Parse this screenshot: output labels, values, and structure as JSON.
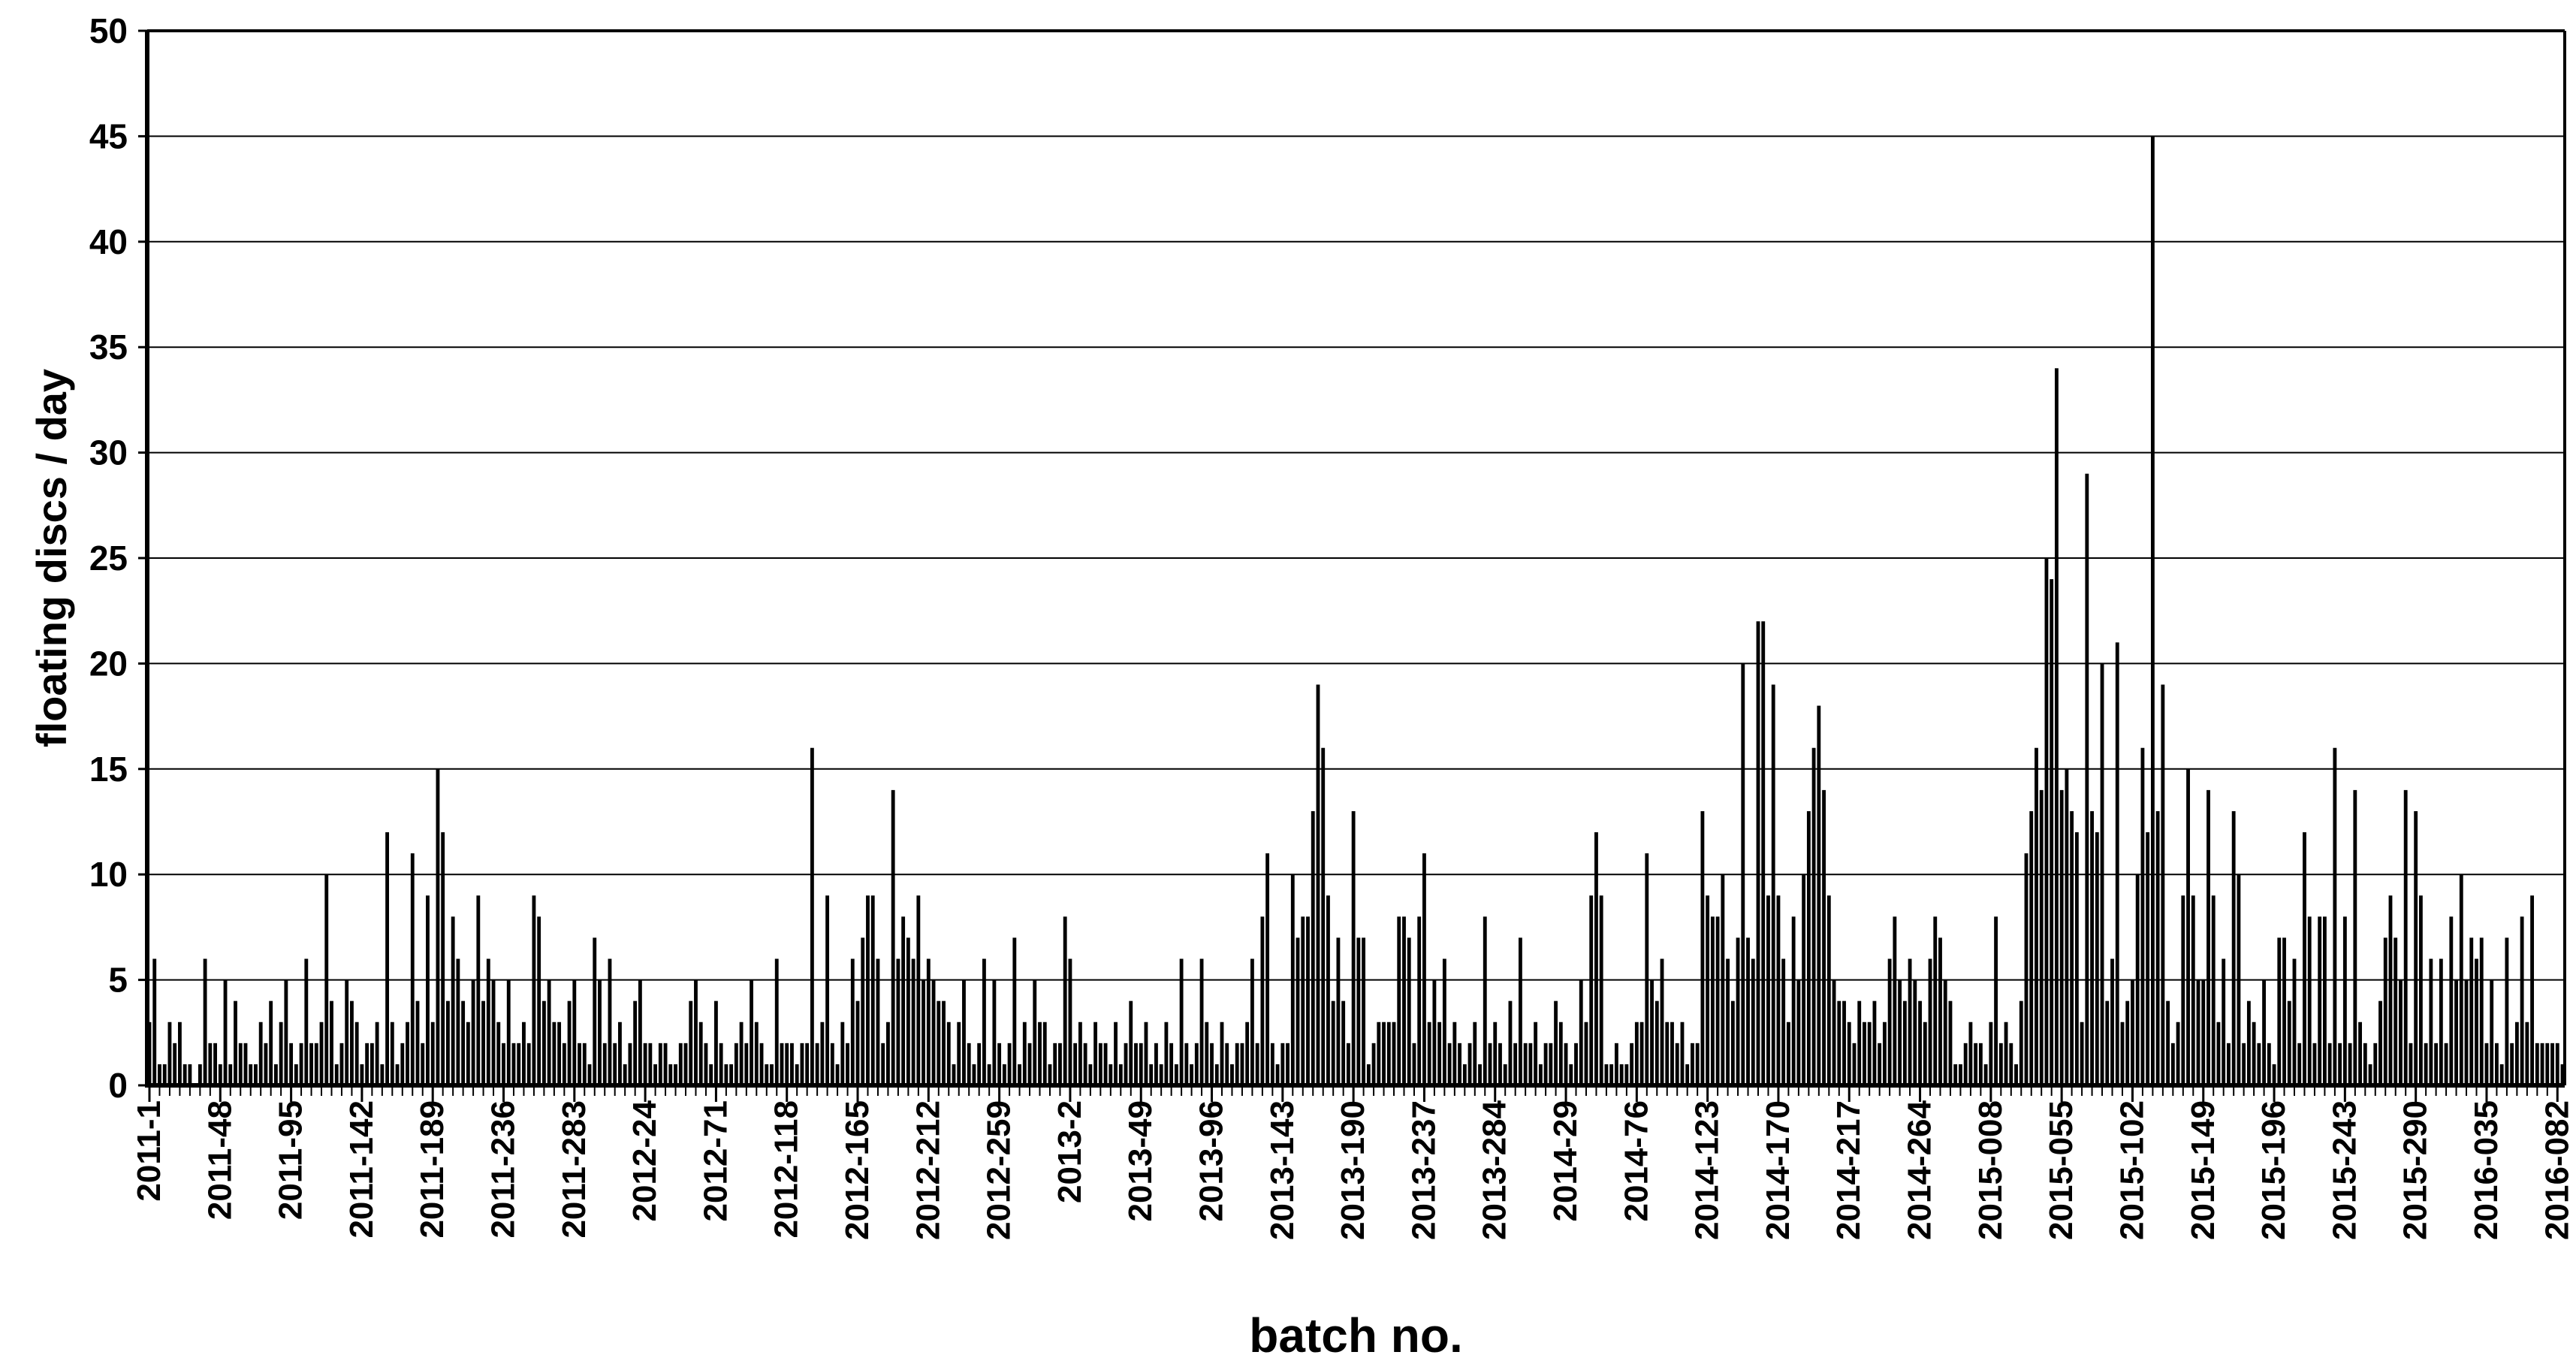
{
  "chart_data": {
    "type": "bar",
    "title": "",
    "xlabel": "batch no.",
    "ylabel": "floating discs / day",
    "ylim": [
      0,
      50
    ],
    "ytick_step": 5,
    "y_tick_labels": [
      "0",
      "5",
      "10",
      "15",
      "20",
      "25",
      "30",
      "35",
      "40",
      "45",
      "50"
    ],
    "grid": "horizontal",
    "legend": "none",
    "bar_color": "#000000",
    "background_color": "#ffffff",
    "tick_label_interval": 14,
    "categories": [
      "2011-1",
      "2011-48",
      "2011-95",
      "2011-142",
      "2011-189",
      "2011-236",
      "2011-283",
      "2012-24",
      "2012-71",
      "2012-118",
      "2012-165",
      "2012-212",
      "2012-259",
      "2013-2",
      "2013-49",
      "2013-96",
      "2013-143",
      "2013-190",
      "2013-237",
      "2013-284",
      "2014-29",
      "2014-76",
      "2014-123",
      "2014-170",
      "2014-217",
      "2014-264",
      "2015-008",
      "2015-055",
      "2015-102",
      "2015-149",
      "2015-196",
      "2015-243",
      "2015-290",
      "2016-035",
      "2016-082"
    ],
    "values": [
      3,
      6,
      1,
      1,
      3,
      2,
      3,
      1,
      1,
      0,
      1,
      6,
      2,
      2,
      1,
      5,
      1,
      4,
      2,
      2,
      1,
      1,
      3,
      2,
      4,
      1,
      3,
      5,
      2,
      1,
      2,
      6,
      2,
      2,
      3,
      10,
      4,
      1,
      2,
      5,
      4,
      3,
      1,
      2,
      2,
      3,
      1,
      12,
      3,
      1,
      2,
      3,
      11,
      4,
      2,
      9,
      3,
      15,
      12,
      4,
      8,
      6,
      4,
      3,
      5,
      9,
      4,
      6,
      5,
      3,
      2,
      5,
      2,
      2,
      3,
      2,
      9,
      8,
      4,
      5,
      3,
      3,
      2,
      4,
      5,
      2,
      2,
      1,
      7,
      5,
      2,
      6,
      2,
      3,
      1,
      2,
      4,
      5,
      2,
      2,
      1,
      2,
      2,
      1,
      1,
      2,
      2,
      4,
      5,
      3,
      2,
      1,
      4,
      2,
      1,
      1,
      2,
      3,
      2,
      5,
      3,
      2,
      1,
      1,
      6,
      2,
      2,
      2,
      1,
      2,
      2,
      16,
      2,
      3,
      9,
      2,
      1,
      3,
      2,
      6,
      4,
      7,
      9,
      9,
      6,
      2,
      3,
      14,
      6,
      8,
      7,
      6,
      9,
      5,
      6,
      5,
      4,
      4,
      3,
      1,
      3,
      5,
      2,
      1,
      2,
      6,
      1,
      5,
      2,
      1,
      2,
      7,
      1,
      3,
      2,
      5,
      3,
      3,
      1,
      2,
      2,
      8,
      6,
      2,
      3,
      2,
      1,
      3,
      2,
      2,
      1,
      3,
      1,
      2,
      4,
      2,
      2,
      3,
      1,
      2,
      1,
      3,
      2,
      1,
      6,
      2,
      1,
      2,
      6,
      3,
      2,
      1,
      3,
      2,
      1,
      2,
      2,
      3,
      6,
      2,
      8,
      11,
      2,
      1,
      2,
      2,
      10,
      7,
      8,
      8,
      13,
      19,
      16,
      9,
      4,
      7,
      4,
      2,
      13,
      7,
      7,
      1,
      2,
      3,
      3,
      3,
      3,
      8,
      8,
      7,
      2,
      8,
      11,
      3,
      5,
      3,
      6,
      2,
      3,
      2,
      1,
      2,
      3,
      1,
      8,
      2,
      3,
      2,
      1,
      4,
      2,
      7,
      2,
      2,
      3,
      1,
      2,
      2,
      4,
      3,
      2,
      1,
      2,
      5,
      3,
      9,
      12,
      9,
      1,
      1,
      2,
      1,
      1,
      2,
      3,
      3,
      11,
      5,
      4,
      6,
      3,
      3,
      2,
      3,
      1,
      2,
      2,
      13,
      9,
      8,
      8,
      10,
      6,
      4,
      7,
      20,
      7,
      6,
      22,
      22,
      9,
      19,
      9,
      6,
      3,
      8,
      5,
      10,
      13,
      16,
      18,
      14,
      9,
      5,
      4,
      4,
      3,
      2,
      4,
      3,
      3,
      4,
      2,
      3,
      6,
      8,
      5,
      4,
      6,
      5,
      4,
      3,
      6,
      8,
      7,
      5,
      4,
      1,
      1,
      2,
      3,
      2,
      2,
      1,
      3,
      8,
      2,
      3,
      2,
      1,
      4,
      11,
      13,
      16,
      14,
      25,
      24,
      34,
      14,
      15,
      13,
      12,
      3,
      29,
      13,
      12,
      20,
      4,
      6,
      21,
      3,
      4,
      5,
      10,
      16,
      12,
      45,
      13,
      19,
      4,
      2,
      3,
      9,
      15,
      9,
      5,
      5,
      14,
      9,
      3,
      6,
      2,
      13,
      10,
      2,
      4,
      3,
      2,
      5,
      2,
      1,
      7,
      7,
      4,
      6,
      2,
      12,
      8,
      2,
      8,
      8,
      2,
      16,
      2,
      8,
      2,
      14,
      3,
      2,
      1,
      2,
      4,
      7,
      9,
      7,
      5,
      14,
      2,
      13,
      9,
      2,
      6,
      2,
      6,
      2,
      8,
      5,
      10,
      5,
      7,
      6,
      7,
      2,
      5,
      2,
      1,
      7,
      2,
      3,
      8,
      3,
      9,
      2,
      2,
      2,
      2,
      2,
      1
    ]
  },
  "layout_note_values": {
    "y_axis_max": 50,
    "y_axis_min": 0
  }
}
